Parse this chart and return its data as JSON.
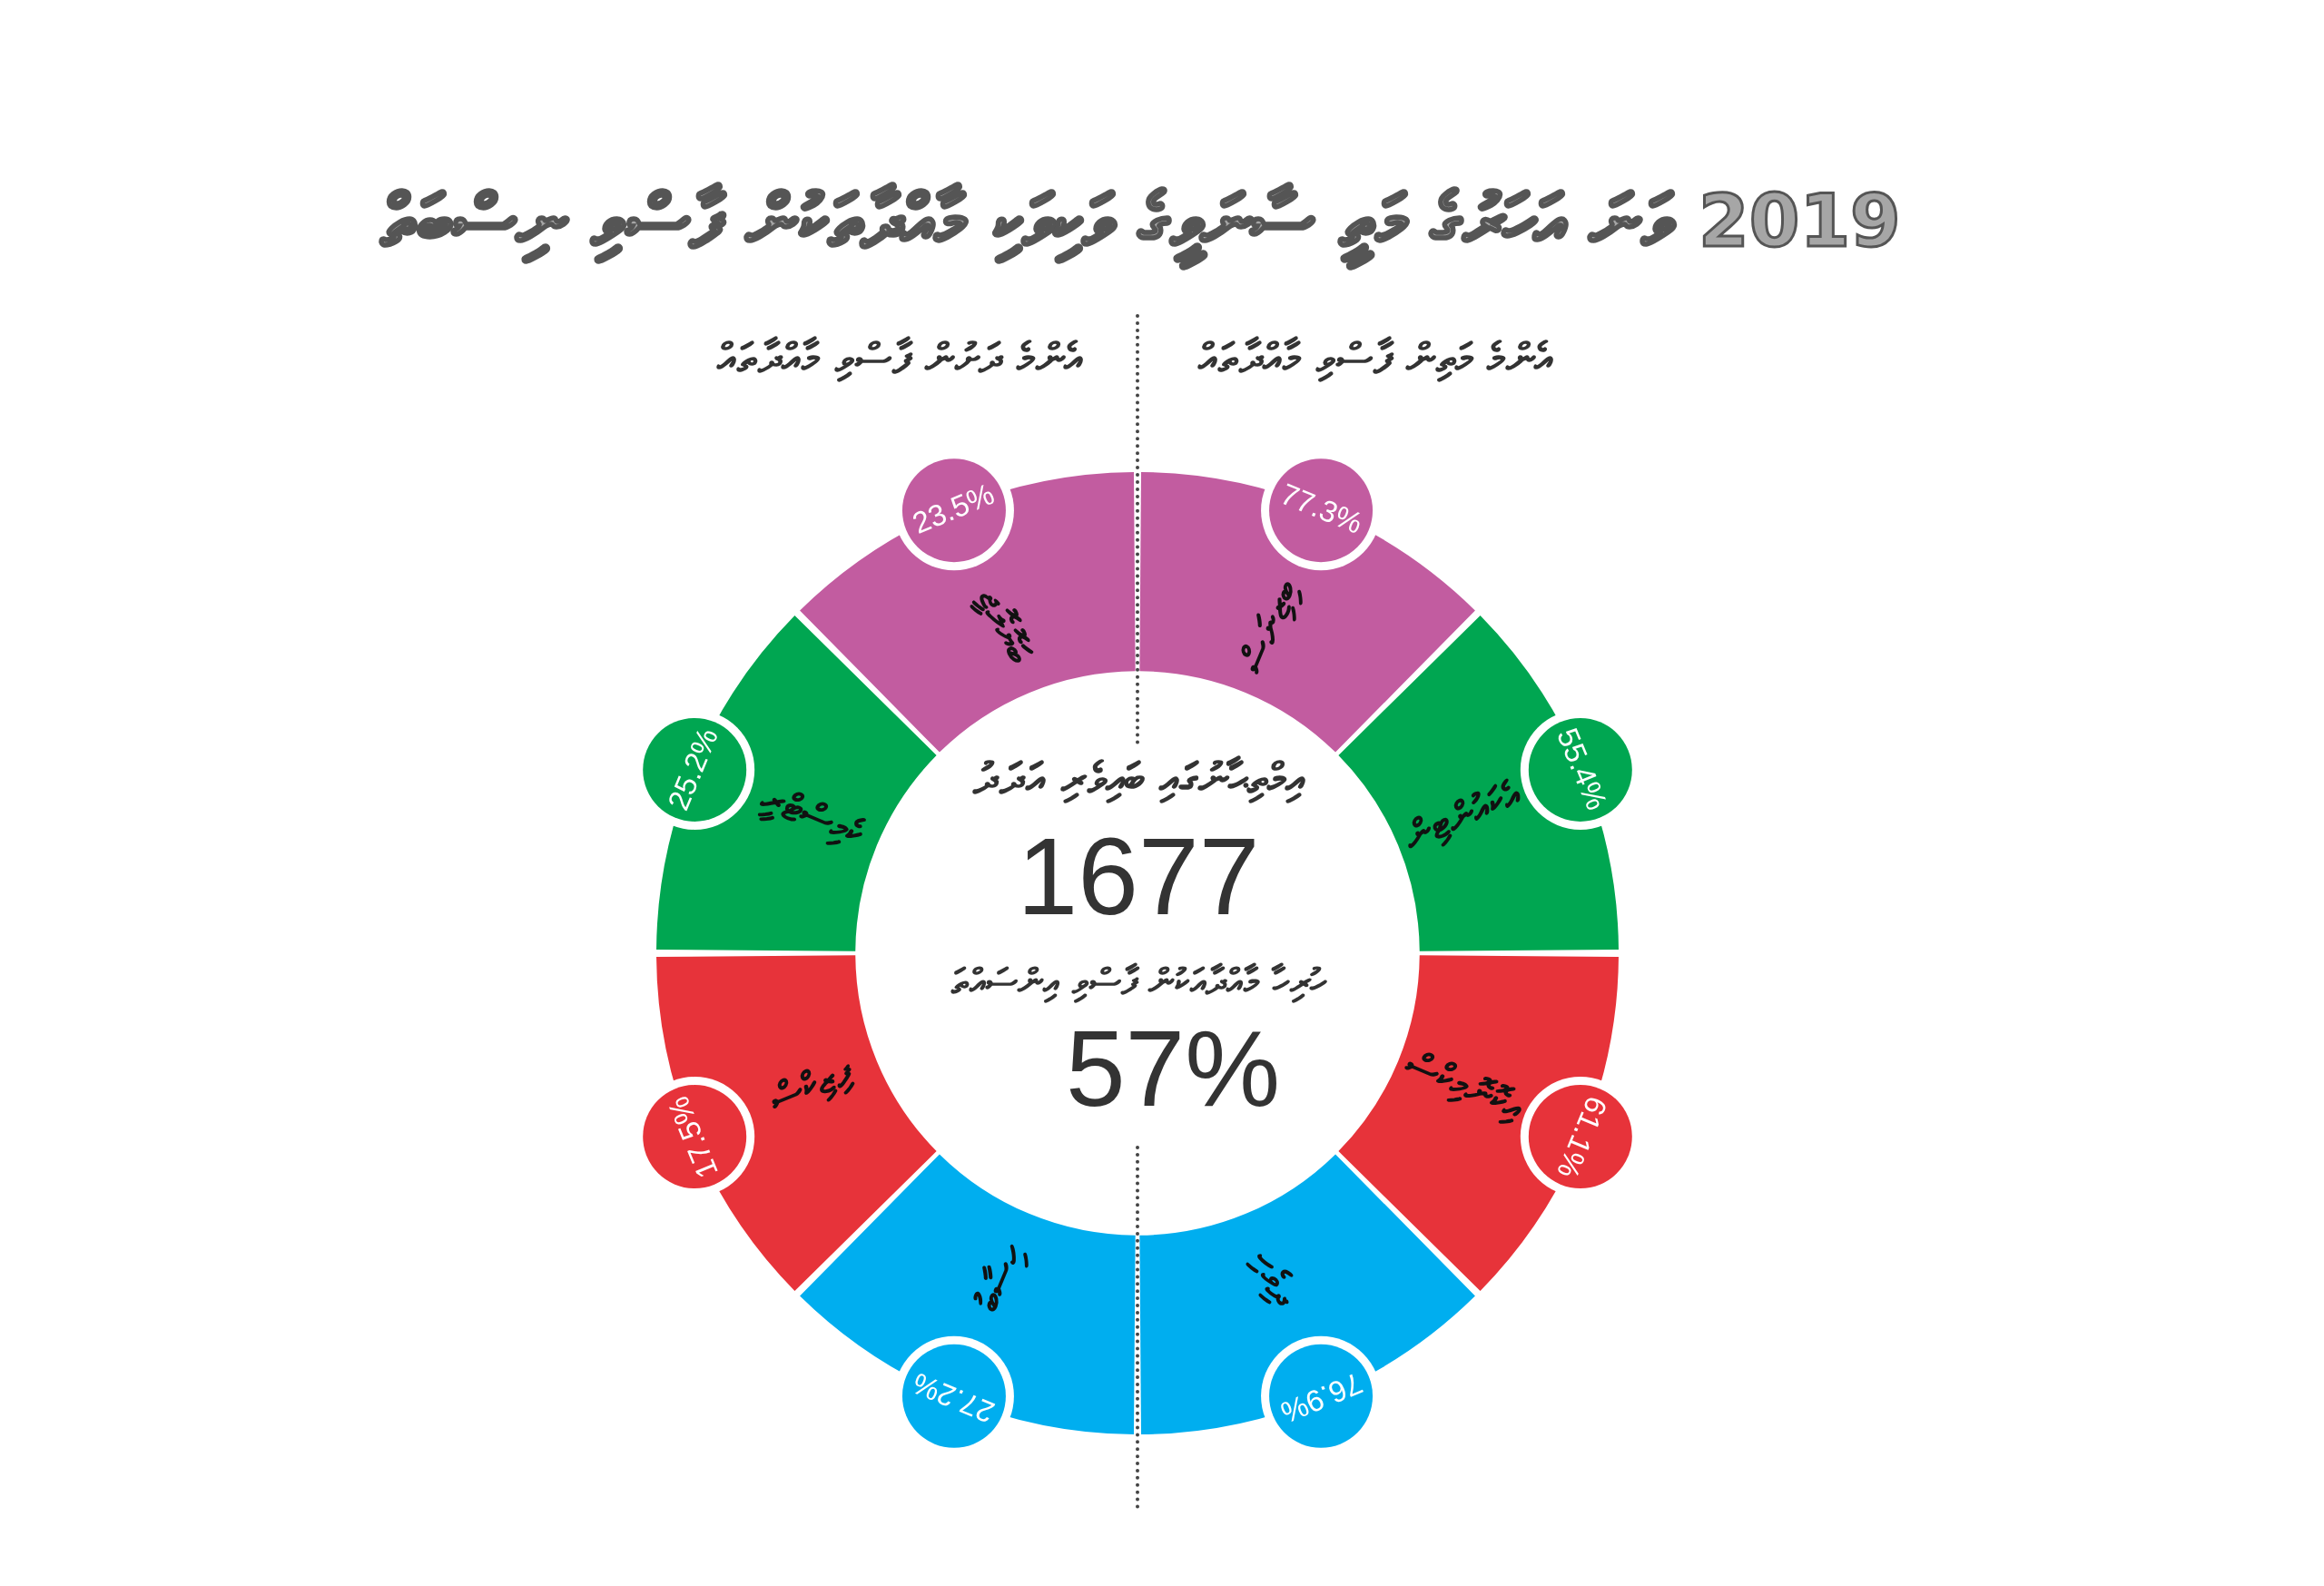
{
  "chart_data": {
    "type": "other",
    "title": "2019 ވަނަ އަހަރުގެ މަތީ ސާނަވީގެ ވަކިވަކި މާއްދާތަކުން ފާސްވި ނިސްބަތް",
    "categories": [
      "ބިޒިނަސް",
      "އެކައުންޓިން",
      "އިކޮނޮމިކްސް",
      "ދިވެހި",
      "ހިސާބު",
      "ފިޒިކްސް",
      "ކެމިސްޓްރީ",
      "ބަޔޮލޮޖީ"
    ],
    "values": [
      77.3,
      55.4,
      61.1,
      76.9,
      27.2,
      17.5,
      25.2,
      23.5
    ],
    "colors": [
      "#c25ca0",
      "#00a651",
      "#e7333a",
      "#00aeef",
      "#00aeef",
      "#e7333a",
      "#00a651",
      "#c25ca0"
    ],
    "value_labels": [
      "77.3%",
      "55.4%",
      "61.1%",
      "76.9%",
      "27.2%",
      "17.5%",
      "25.2%",
      "23.5%"
    ],
    "annotations": [
      "އެންމެ މަތިން ފާސްވި މާއްދާތައް",
      "އެންމެ ދަށުން ފާސްވި މާއްދާތައް",
      "އިމްތިޙާނުގައި ބައިވެރި އަދަދު",
      "1677",
      "ހުރިހާ މާއްދާއަކުން ފާސްވި އިންސައްތަ",
      "57%"
    ]
  }
}
